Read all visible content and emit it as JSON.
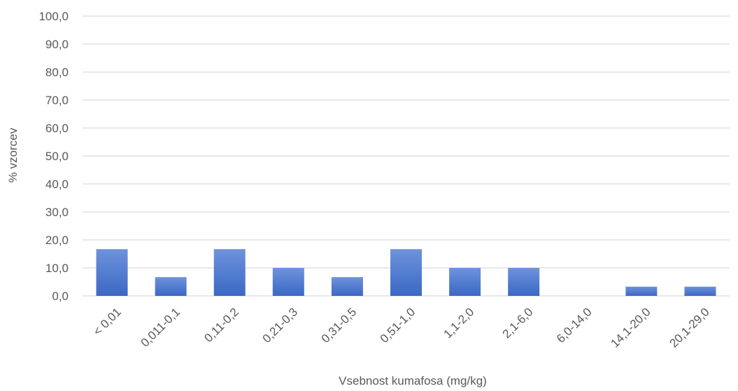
{
  "chart_data": {
    "type": "bar",
    "title": "",
    "xlabel": "Vsebnost kumafosa (mg/kg)",
    "ylabel": "% vzorcev",
    "categories": [
      "< 0,01",
      "0,011-0,1",
      "0,11-0,2",
      "0,21-0,3",
      "0,31-0,5",
      "0,51-1,0",
      "1,1-2,0",
      "2,1-6,0",
      "6,0-14,0",
      "14,1-20,0",
      "20,1-29,0"
    ],
    "values": [
      16.7,
      6.7,
      16.7,
      10.0,
      6.7,
      16.7,
      10.0,
      10.0,
      0.0,
      3.3,
      3.3
    ],
    "ylim": [
      0,
      100
    ],
    "yticks": [
      "0,0",
      "10,0",
      "20,0",
      "30,0",
      "40,0",
      "50,0",
      "60,0",
      "70,0",
      "80,0",
      "90,0",
      "100,0"
    ],
    "grid": true,
    "legend": "none",
    "bar_color_top": "#6f93dc",
    "bar_color_bottom": "#3a68c4",
    "grid_color": "#d9d9d9",
    "text_color": "#595959"
  }
}
